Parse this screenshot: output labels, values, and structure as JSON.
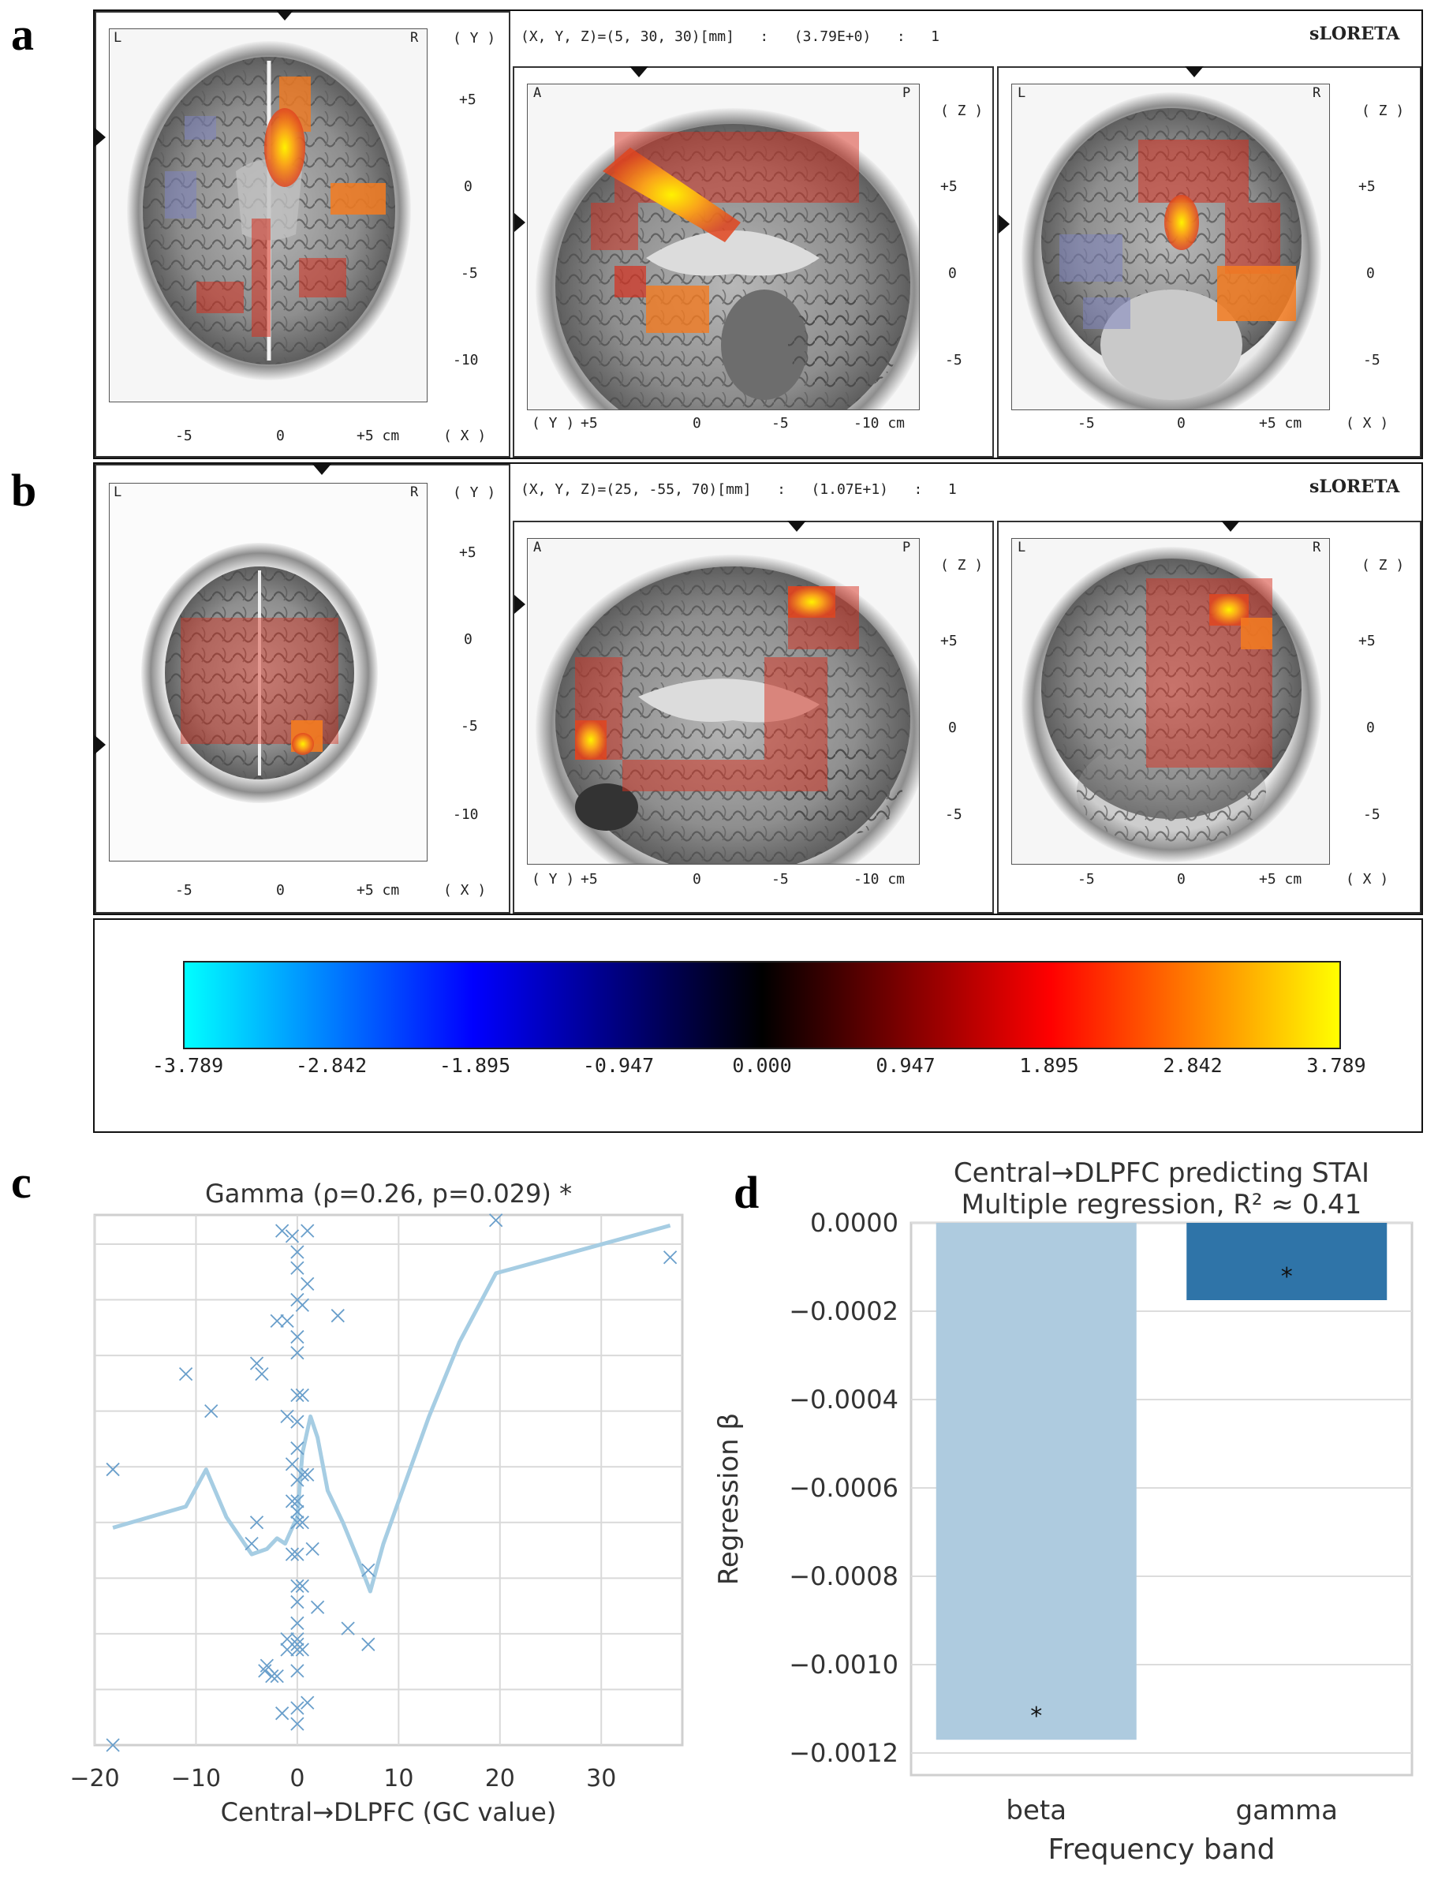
{
  "panel_letters": {
    "a": "a",
    "b": "b",
    "c": "c",
    "d": "d"
  },
  "colors": {
    "hot_red": "#d7301f",
    "hot_orange": "#f47b20",
    "hot_yellow": "#ffe000",
    "cold_blue": "#7f85c0",
    "plot_blue": "#1f77b4",
    "plot_light": "#a6cde3",
    "bar_beta": "#aecbdf",
    "bar_gamma": "#2f74a8"
  },
  "row_a": {
    "header": "(X, Y, Z)=(5, 30, 30)[mm]   :   (3.79E+0)   :   1",
    "sloreta": "sLORETA",
    "axial": {
      "left": "L",
      "right": "R",
      "axis_y": "( Y )",
      "axis_x": "( X )",
      "yticks": [
        "+5",
        "0",
        "-5",
        "-10"
      ],
      "xticks": [
        "-5",
        "0",
        "+5 cm"
      ]
    },
    "sagittal": {
      "left": "A",
      "right": "P",
      "axis_z": "( Z )",
      "axis_y": "( Y )",
      "zticks": [
        "+5",
        "0",
        "-5"
      ],
      "xticks": [
        "+5",
        "0",
        "-5",
        "-10 cm"
      ]
    },
    "coronal": {
      "left": "L",
      "right": "R",
      "axis_z": "( Z )",
      "axis_x": "( X )",
      "zticks": [
        "+5",
        "0",
        "-5"
      ],
      "xticks": [
        "-5",
        "0",
        "+5 cm"
      ]
    }
  },
  "row_b": {
    "header": "(X, Y, Z)=(25, -55, 70)[mm]   :   (1.07E+1)   :   1",
    "sloreta": "sLORETA",
    "axial": {
      "left": "L",
      "right": "R",
      "axis_y": "( Y )",
      "axis_x": "( X )",
      "yticks": [
        "+5",
        "0",
        "-5",
        "-10"
      ],
      "xticks": [
        "-5",
        "0",
        "+5 cm"
      ]
    },
    "sagittal": {
      "left": "A",
      "right": "P",
      "axis_z": "( Z )",
      "axis_y": "( Y )",
      "zticks": [
        "+5",
        "0",
        "-5"
      ],
      "xticks": [
        "+5",
        "0",
        "-5",
        "-10 cm"
      ]
    },
    "coronal": {
      "left": "L",
      "right": "R",
      "axis_z": "( Z )",
      "axis_x": "( X )",
      "zticks": [
        "+5",
        "0",
        "-5"
      ],
      "xticks": [
        "-5",
        "0",
        "+5 cm"
      ]
    }
  },
  "colorbar": {
    "labels": [
      "-3.789",
      "-2.842",
      "-1.895",
      "-0.947",
      "0.000",
      "0.947",
      "1.895",
      "2.842",
      "3.789"
    ],
    "stops": [
      "#00ffff",
      "#0000ff",
      "#000000",
      "#ff0000",
      "#ffff00"
    ]
  },
  "chart_data": [
    {
      "type": "scatter",
      "title": "Gamma (ρ=0.26, p=0.029) *",
      "xlabel": "Central→DLPFC (GC value)",
      "ylabel": "",
      "xlim": [
        -20,
        38
      ],
      "ylim": [
        0,
        10
      ],
      "xticks": [
        -20,
        -10,
        0,
        10,
        20,
        30
      ],
      "xtick_labels": [
        "−20",
        "−10",
        "0",
        "10",
        "20",
        "30"
      ],
      "grid": true,
      "points": [
        [
          -18.2,
          5.2
        ],
        [
          -18.2,
          0.0
        ],
        [
          -11,
          7.0
        ],
        [
          -8.5,
          6.3
        ],
        [
          -4,
          7.2
        ],
        [
          -3.5,
          7.0
        ],
        [
          -2,
          8.0
        ],
        [
          -1.5,
          9.7
        ],
        [
          -1,
          8.0
        ],
        [
          -1,
          6.2
        ],
        [
          -1,
          2.0
        ],
        [
          -1,
          1.8
        ],
        [
          -0.5,
          9.6
        ],
        [
          -0.5,
          5.3
        ],
        [
          -0.5,
          4.6
        ],
        [
          -0.5,
          3.6
        ],
        [
          0,
          9.3
        ],
        [
          0,
          9.0
        ],
        [
          0,
          8.4
        ],
        [
          0,
          7.7
        ],
        [
          0,
          7.4
        ],
        [
          0,
          6.6
        ],
        [
          0,
          6.1
        ],
        [
          0,
          5.6
        ],
        [
          0,
          5.0
        ],
        [
          0,
          4.6
        ],
        [
          0,
          4.4
        ],
        [
          0,
          4.2
        ],
        [
          0,
          3.6
        ],
        [
          0,
          3.0
        ],
        [
          0,
          2.7
        ],
        [
          0,
          2.3
        ],
        [
          0,
          2.0
        ],
        [
          0,
          1.9
        ],
        [
          0,
          1.8
        ],
        [
          0,
          1.4
        ],
        [
          0,
          0.7
        ],
        [
          0,
          0.4
        ],
        [
          0.5,
          8.3
        ],
        [
          0.5,
          6.6
        ],
        [
          0.5,
          5.1
        ],
        [
          0.5,
          4.2
        ],
        [
          0.5,
          3.0
        ],
        [
          0.5,
          1.8
        ],
        [
          1,
          9.7
        ],
        [
          1,
          8.7
        ],
        [
          1,
          5.1
        ],
        [
          1,
          0.8
        ],
        [
          1.5,
          3.7
        ],
        [
          2,
          2.6
        ],
        [
          4,
          8.1
        ],
        [
          5,
          2.2
        ],
        [
          7,
          3.3
        ],
        [
          7,
          1.9
        ],
        [
          -4.5,
          3.8
        ],
        [
          -4,
          4.2
        ],
        [
          -3,
          1.5
        ],
        [
          -2.5,
          1.3
        ],
        [
          -1.5,
          0.6
        ],
        [
          -2,
          1.3
        ],
        [
          -3.2,
          1.4
        ],
        [
          19.6,
          9.9
        ],
        [
          36.8,
          9.2
        ]
      ],
      "smooth_line": [
        [
          -18.2,
          4.1
        ],
        [
          -11,
          4.5
        ],
        [
          -9,
          5.2
        ],
        [
          -7,
          4.3
        ],
        [
          -4.5,
          3.6
        ],
        [
          -3,
          3.7
        ],
        [
          -2,
          3.9
        ],
        [
          -1.2,
          3.8
        ],
        [
          -0.5,
          4.1
        ],
        [
          0,
          4.3
        ],
        [
          0.5,
          5.5
        ],
        [
          1.3,
          6.2
        ],
        [
          2,
          5.8
        ],
        [
          3,
          4.8
        ],
        [
          4.5,
          4.2
        ],
        [
          6,
          3.5
        ],
        [
          7.2,
          2.9
        ],
        [
          8.5,
          3.8
        ],
        [
          10,
          4.6
        ],
        [
          13,
          6.2
        ],
        [
          16,
          7.6
        ],
        [
          19.6,
          8.9
        ],
        [
          36.8,
          9.8
        ]
      ]
    },
    {
      "type": "bar",
      "title": "Central→DLPFC predicting STAI",
      "subtitle": "Multiple regression, R² ≈ 0.41",
      "xlabel": "Frequency band",
      "ylabel": "Regression β",
      "categories": [
        "beta",
        "gamma"
      ],
      "values": [
        -0.00117,
        -0.000175
      ],
      "annotations": [
        "*",
        "*"
      ],
      "ylim": [
        -0.00125,
        0.0
      ],
      "yticks": [
        0.0,
        -0.0002,
        -0.0004,
        -0.0006,
        -0.0008,
        -0.001,
        -0.0012
      ],
      "ytick_labels": [
        "0.0000",
        "−0.0002",
        "−0.0004",
        "−0.0006",
        "−0.0008",
        "−0.0010",
        "−0.0012"
      ],
      "grid": true
    }
  ]
}
